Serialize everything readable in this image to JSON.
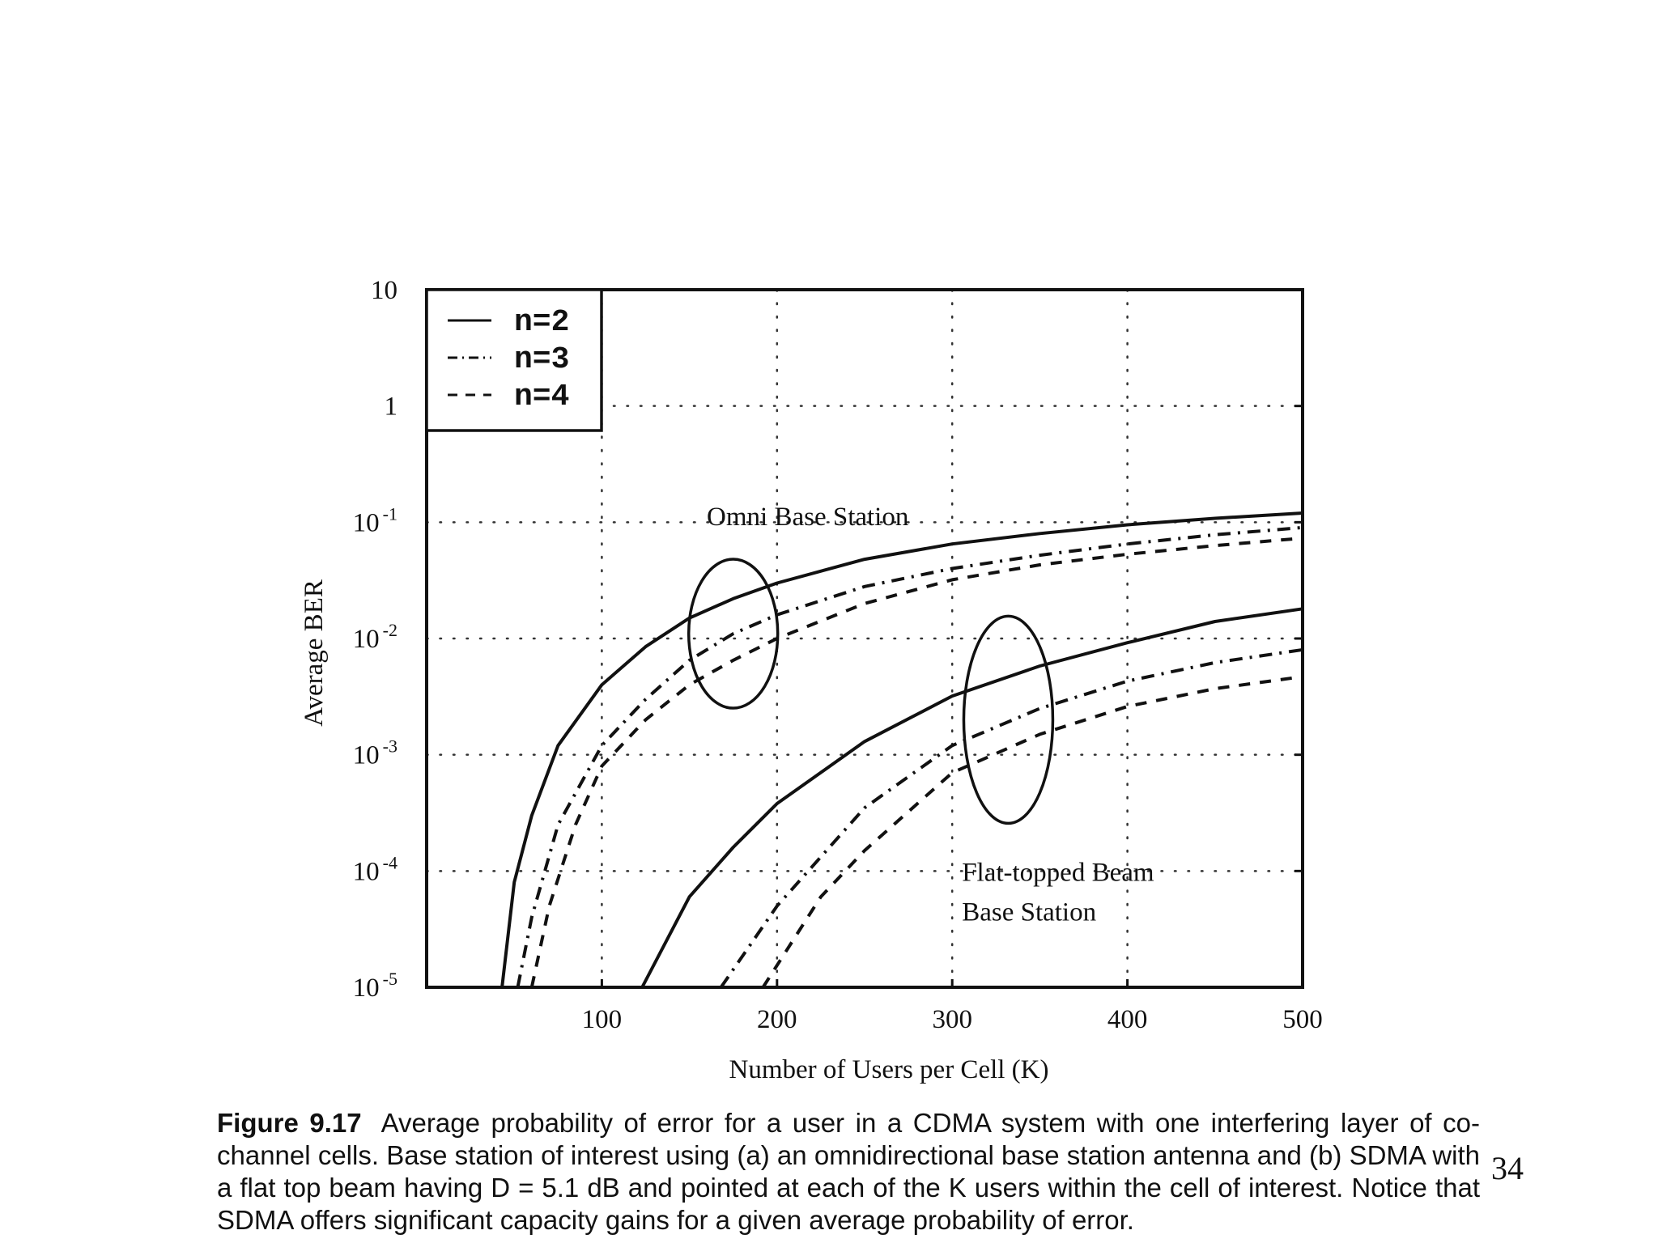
{
  "chart_data": {
    "type": "line",
    "y_scale": "log",
    "xlabel": "Number of Users per Cell (K)",
    "ylabel": "Average BER",
    "xlim": [
      0,
      500
    ],
    "ylim": [
      1e-05,
      10
    ],
    "x_ticks": [
      "100",
      "200",
      "300",
      "400",
      "500"
    ],
    "x_tick_values": [
      100,
      200,
      300,
      400,
      500
    ],
    "y_ticks": [
      {
        "value": 10,
        "base": "10",
        "exp": ""
      },
      {
        "value": 1,
        "base": "1",
        "exp": ""
      },
      {
        "value": 0.1,
        "base": "10",
        "exp": "-1"
      },
      {
        "value": 0.01,
        "base": "10",
        "exp": "-2"
      },
      {
        "value": 0.001,
        "base": "10",
        "exp": "-3"
      },
      {
        "value": 0.0001,
        "base": "10",
        "exp": "-4"
      },
      {
        "value": 1e-05,
        "base": "10",
        "exp": "-5"
      }
    ],
    "grid": true,
    "legend_position": "top-left",
    "legend": [
      {
        "label": "n=2",
        "style": "solid"
      },
      {
        "label": "n=3",
        "style": "dash-dot"
      },
      {
        "label": "n=4",
        "style": "dashed"
      }
    ],
    "annotations": [
      {
        "text": "Omni Base Station",
        "target_group": "omni",
        "ellipse_center": [
          175,
          0.011
        ]
      },
      {
        "text_lines": [
          "Flat-topped Beam",
          "Base Station"
        ],
        "target_group": "beam",
        "ellipse_center": [
          332,
          0.002
        ]
      }
    ],
    "series": [
      {
        "name": "n=2",
        "group": "omni",
        "style": "solid",
        "x": [
          43,
          50,
          60,
          75,
          100,
          125,
          150,
          175,
          200,
          250,
          300,
          350,
          400,
          450,
          500
        ],
        "y": [
          1e-05,
          8e-05,
          0.0003,
          0.0012,
          0.004,
          0.0085,
          0.015,
          0.022,
          0.03,
          0.048,
          0.065,
          0.08,
          0.095,
          0.108,
          0.12
        ]
      },
      {
        "name": "n=3",
        "group": "omni",
        "style": "dash-dot",
        "x": [
          52,
          60,
          75,
          100,
          125,
          150,
          175,
          200,
          250,
          300,
          350,
          400,
          450,
          500
        ],
        "y": [
          1e-05,
          4e-05,
          0.00025,
          0.0012,
          0.003,
          0.0065,
          0.011,
          0.016,
          0.028,
          0.04,
          0.052,
          0.065,
          0.078,
          0.09
        ]
      },
      {
        "name": "n=4",
        "group": "omni",
        "style": "dashed",
        "x": [
          60,
          70,
          85,
          100,
          125,
          150,
          175,
          200,
          250,
          300,
          350,
          400,
          450,
          500
        ],
        "y": [
          1e-05,
          5e-05,
          0.00025,
          0.0008,
          0.002,
          0.004,
          0.0065,
          0.01,
          0.02,
          0.032,
          0.043,
          0.053,
          0.063,
          0.073
        ]
      },
      {
        "name": "n=2",
        "group": "beam",
        "style": "solid",
        "x": [
          123,
          150,
          175,
          200,
          250,
          300,
          350,
          400,
          450,
          500
        ],
        "y": [
          1e-05,
          6e-05,
          0.00016,
          0.00038,
          0.0013,
          0.0032,
          0.0058,
          0.0092,
          0.014,
          0.018
        ]
      },
      {
        "name": "n=3",
        "group": "beam",
        "style": "dash-dot",
        "x": [
          168,
          200,
          250,
          300,
          350,
          400,
          450,
          500
        ],
        "y": [
          1e-05,
          5e-05,
          0.00035,
          0.0012,
          0.0025,
          0.0043,
          0.0062,
          0.008
        ]
      },
      {
        "name": "n=4",
        "group": "beam",
        "style": "dashed",
        "x": [
          192,
          225,
          250,
          300,
          350,
          400,
          450,
          500
        ],
        "y": [
          1e-05,
          6e-05,
          0.00015,
          0.0007,
          0.0015,
          0.0026,
          0.0037,
          0.0047
        ]
      }
    ]
  },
  "caption": {
    "label": "Figure 9.17",
    "text": "Average probability of error for a user in a CDMA system with one interfering layer of co-channel cells. Base station of interest using (a) an omnidirectional base station antenna and (b) SDMA with a flat top beam having D = 5.1 dB and pointed at each of the K users within the cell of interest. Notice that SDMA offers significant capacity gains for a given average probability of error."
  },
  "page_number": "34"
}
